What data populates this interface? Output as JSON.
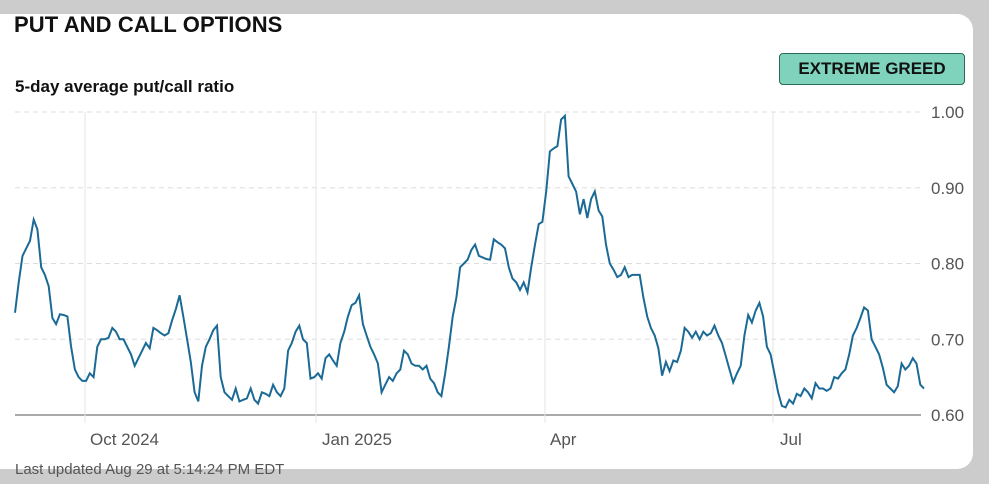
{
  "header": {
    "title": "PUT AND CALL OPTIONS",
    "subtitle": "5-day average put/call ratio",
    "badge": "EXTREME GREED",
    "badge_color": "#7fd3bc"
  },
  "footer": {
    "updated": "Last updated Aug 29 at 5:14:24 PM EDT"
  },
  "chart_data": {
    "type": "line",
    "title": "5-day average put/call ratio",
    "x_tick_labels": [
      "Oct 2024",
      "Jan 2025",
      "Apr",
      "Jul"
    ],
    "y_tick_labels": [
      "1.00",
      "0.90",
      "0.80",
      "0.70",
      "0.60"
    ],
    "ylim": [
      0.6,
      1.0
    ],
    "y_ticks": [
      0.6,
      0.7,
      0.8,
      0.9,
      1.0
    ],
    "grid": "dashed horizontal, solid vertical at month ticks",
    "line_color": "#1b6a96",
    "series": [
      {
        "values": [
          0.735,
          0.775,
          0.81,
          0.82,
          0.83,
          0.858,
          0.845,
          0.795,
          0.785,
          0.77,
          0.728,
          0.72,
          0.733,
          0.732,
          0.73,
          0.69,
          0.66,
          0.65,
          0.645,
          0.645,
          0.655,
          0.65,
          0.69,
          0.7,
          0.7,
          0.702,
          0.715,
          0.71,
          0.7,
          0.7,
          0.69,
          0.68,
          0.665,
          0.675,
          0.685,
          0.695,
          0.688,
          0.715,
          0.712,
          0.708,
          0.705,
          0.708,
          0.725,
          0.74,
          0.758,
          0.73,
          0.7,
          0.67,
          0.63,
          0.618,
          0.665,
          0.69,
          0.7,
          0.712,
          0.718,
          0.65,
          0.63,
          0.625,
          0.62,
          0.635,
          0.618,
          0.62,
          0.622,
          0.635,
          0.62,
          0.615,
          0.63,
          0.628,
          0.625,
          0.64,
          0.63,
          0.625,
          0.635,
          0.685,
          0.695,
          0.71,
          0.718,
          0.7,
          0.695,
          0.648,
          0.65,
          0.655,
          0.648,
          0.675,
          0.68,
          0.672,
          0.665,
          0.695,
          0.71,
          0.73,
          0.745,
          0.748,
          0.758,
          0.72,
          0.705,
          0.69,
          0.68,
          0.668,
          0.63,
          0.64,
          0.65,
          0.645,
          0.655,
          0.66,
          0.685,
          0.68,
          0.668,
          0.665,
          0.665,
          0.66,
          0.665,
          0.648,
          0.642,
          0.63,
          0.625,
          0.655,
          0.69,
          0.73,
          0.755,
          0.795,
          0.8,
          0.805,
          0.818,
          0.825,
          0.81,
          0.808,
          0.806,
          0.805,
          0.832,
          0.828,
          0.825,
          0.82,
          0.795,
          0.78,
          0.775,
          0.765,
          0.775,
          0.762,
          0.795,
          0.825,
          0.852,
          0.855,
          0.895,
          0.948,
          0.952,
          0.955,
          0.99,
          0.995,
          0.915,
          0.905,
          0.895,
          0.865,
          0.885,
          0.86,
          0.885,
          0.895,
          0.87,
          0.862,
          0.825,
          0.8,
          0.792,
          0.782,
          0.785,
          0.795,
          0.782,
          0.785,
          0.785,
          0.785,
          0.755,
          0.73,
          0.715,
          0.705,
          0.688,
          0.652,
          0.67,
          0.658,
          0.672,
          0.67,
          0.685,
          0.715,
          0.71,
          0.702,
          0.71,
          0.7,
          0.71,
          0.705,
          0.708,
          0.718,
          0.705,
          0.695,
          0.678,
          0.66,
          0.643,
          0.655,
          0.665,
          0.705,
          0.732,
          0.722,
          0.738,
          0.748,
          0.73,
          0.69,
          0.68,
          0.655,
          0.63,
          0.612,
          0.61,
          0.62,
          0.615,
          0.628,
          0.625,
          0.635,
          0.63,
          0.622,
          0.642,
          0.635,
          0.635,
          0.632,
          0.635,
          0.65,
          0.648,
          0.655,
          0.66,
          0.68,
          0.705,
          0.715,
          0.728,
          0.742,
          0.738,
          0.7,
          0.69,
          0.68,
          0.662,
          0.64,
          0.635,
          0.63,
          0.638,
          0.668,
          0.66,
          0.665,
          0.675,
          0.668,
          0.64,
          0.635
        ]
      }
    ]
  }
}
